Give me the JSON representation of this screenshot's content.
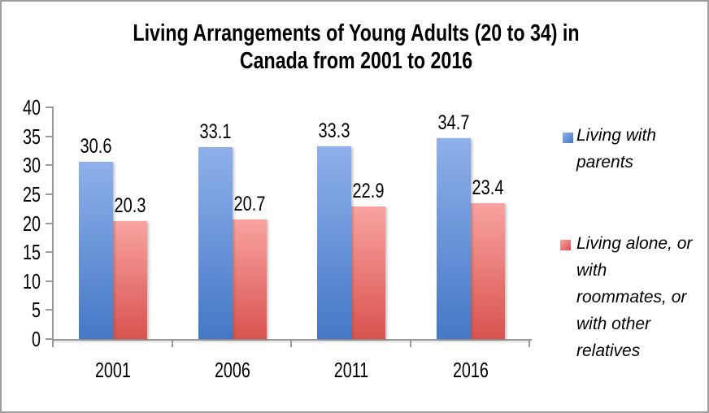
{
  "title": {
    "lines": [
      "Living Arrangements of Young Adults (20 to 34) in",
      "Canada from 2001 to 2016"
    ]
  },
  "chart_data": {
    "type": "bar",
    "title": "Living Arrangements of Young Adults (20 to 34) in Canada from 2001 to 2016",
    "categories": [
      "2001",
      "2006",
      "2011",
      "2016"
    ],
    "series": [
      {
        "name": "Living with parents",
        "legend_lines": [
          "Living with",
          "parents"
        ],
        "values": [
          30.6,
          33.1,
          33.3,
          34.7
        ],
        "fill_top": "#8FB0EA",
        "fill_bottom": "#4478C6"
      },
      {
        "name": "Living alone, or with roommates, or with other relatives",
        "legend_lines": [
          "Living alone, or",
          "with",
          "roommates, or",
          "with other",
          "relatives"
        ],
        "values": [
          20.3,
          20.7,
          22.9,
          23.4
        ],
        "fill_top": "#F9A3A0",
        "fill_bottom": "#D9534F"
      }
    ],
    "yticks": [
      0,
      5,
      10,
      15,
      20,
      25,
      30,
      35,
      40
    ],
    "ylim": [
      0,
      40
    ],
    "xlabel": "",
    "ylabel": "",
    "grid": false,
    "data_labels": true,
    "legend_position": "right",
    "axis_color": "#9a9a9a"
  }
}
